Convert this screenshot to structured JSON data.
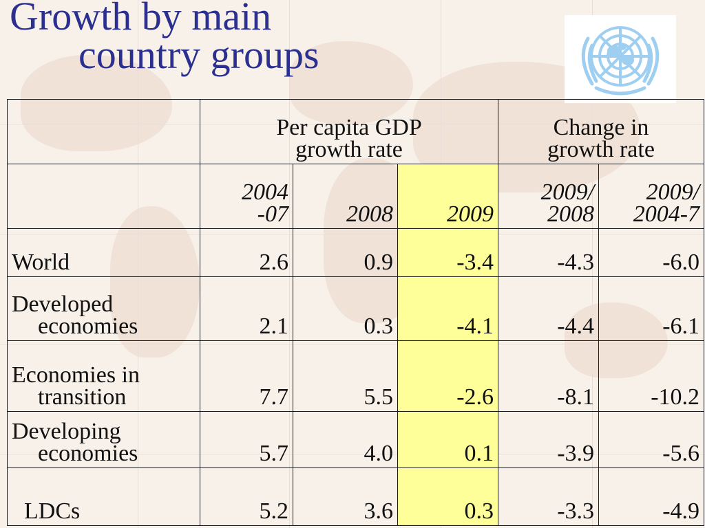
{
  "slide": {
    "title_line1": "Growth by main",
    "title_line2": "country groups"
  },
  "colors": {
    "title": "#2b2f8f",
    "highlight": "#ffff99",
    "logo": "#9fcff0"
  },
  "logo_icon": "un-emblem-icon",
  "table": {
    "group_headers": {
      "per_capita_line1": "Per capita GDP",
      "per_capita_line2": "growth rate",
      "change_line1": "Change in",
      "change_line2": "growth rate"
    },
    "year_headers": {
      "y2004_line1": "2004",
      "y2004_line2": "-07",
      "y2008": "2008",
      "y2009": "2009",
      "c1_line1": "2009/",
      "c1_line2": "2008",
      "c2_line1": "2009/",
      "c2_line2": "2004-7"
    },
    "rows": [
      {
        "label_line1": "World",
        "label_line2": "",
        "v2004_07": "2.6",
        "v2008": "0.9",
        "v2009": "-3.4",
        "chg_2008": "-4.3",
        "chg_2004_7": "-6.0"
      },
      {
        "label_line1": "Developed",
        "label_line2": "economies",
        "v2004_07": "2.1",
        "v2008": "0.3",
        "v2009": "-4.1",
        "chg_2008": "-4.4",
        "chg_2004_7": "-6.1"
      },
      {
        "label_line1": "Economies in",
        "label_line2": "transition",
        "v2004_07": "7.7",
        "v2008": "5.5",
        "v2009": "-2.6",
        "chg_2008": "-8.1",
        "chg_2004_7": "-10.2"
      },
      {
        "label_line1": "Developing",
        "label_line2": "economies",
        "v2004_07": "5.7",
        "v2008": "4.0",
        "v2009": "0.1",
        "chg_2008": "-3.9",
        "chg_2004_7": "-5.6"
      },
      {
        "label_line1": "LDCs",
        "label_line2": "",
        "v2004_07": "5.2",
        "v2008": "3.6",
        "v2009": "0.3",
        "chg_2008": "-3.3",
        "chg_2004_7": "-4.9"
      }
    ]
  }
}
